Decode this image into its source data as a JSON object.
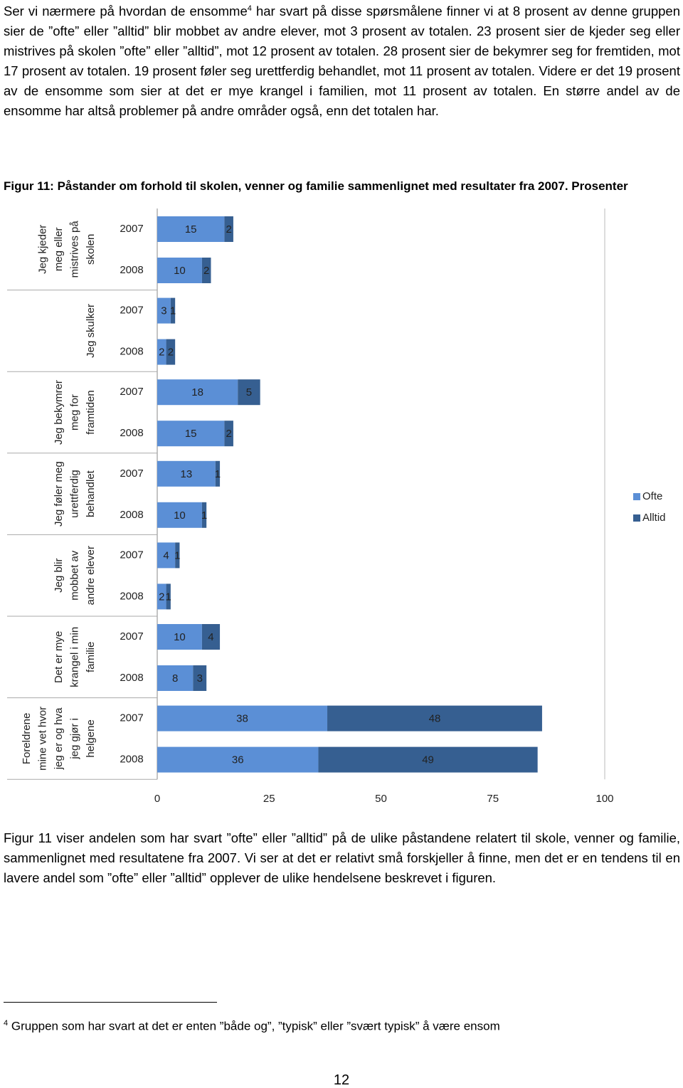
{
  "intro": {
    "text_before": "Ser vi nærmere på hvordan de ensomme",
    "footnote_mark": "4",
    "text_after": "har svart på disse spørsmålene finner vi at 8 prosent av denne gruppen sier de ”ofte” eller ”alltid” blir mobbet av andre elever, mot 3 prosent av totalen. 23 prosent sier de kjeder seg eller mistrives på skolen ”ofte” eller ”alltid”, mot 12 prosent av totalen. 28 prosent sier de bekymrer seg for fremtiden, mot 17 prosent av totalen. 19 prosent føler seg urettferdig behandlet, mot 11 prosent av totalen. Videre er det 19 prosent av de ensomme som sier at det er mye krangel i familien, mot 11 prosent av totalen. En større andel av de ensomme har altså problemer på andre områder også, enn det totalen har."
  },
  "figure_caption": "Figur 11: Påstander om forhold til skolen, venner og familie sammenlignet med resultater fra 2007. Prosenter",
  "chart_data": {
    "type": "stacked-bar-horizontal",
    "groups": [
      [
        "Jeg kjeder",
        "meg eller",
        "mistrives på",
        "skolen"
      ],
      [
        "Jeg skulker"
      ],
      [
        "Jeg bekymrer",
        "meg for",
        "framtiden"
      ],
      [
        "Jeg føler meg",
        "urettferdig",
        "behandlet"
      ],
      [
        "Jeg blir",
        "mobbet av",
        "andre elever"
      ],
      [
        "Det er mye",
        "krangel i min",
        "familie"
      ],
      [
        "Foreldrene",
        "mine vet hvor",
        "jeg er og hva",
        "jeg gjør i",
        "helgene"
      ]
    ],
    "categories": [
      "2007",
      "2008",
      "2007",
      "2008",
      "2007",
      "2008",
      "2007",
      "2008",
      "2007",
      "2008",
      "2007",
      "2008",
      "2007",
      "2008"
    ],
    "series": [
      {
        "name": "Ofte",
        "color": "#5b8fd6",
        "values": [
          15,
          10,
          3,
          2,
          18,
          15,
          13,
          10,
          4,
          2,
          10,
          8,
          38,
          36
        ]
      },
      {
        "name": "Alltid",
        "color": "#365f91",
        "values": [
          2,
          2,
          1,
          2,
          5,
          2,
          1,
          1,
          1,
          1,
          4,
          3,
          48,
          49
        ]
      }
    ],
    "xlim": [
      0,
      100
    ],
    "xticks": [
      0,
      25,
      50,
      75,
      100
    ],
    "legend": "right"
  },
  "body": "Figur 11 viser andelen som har svart ”ofte” eller ”alltid” på de ulike påstandene relatert til skole, venner og familie, sammenlignet med resultatene fra 2007. Vi ser at det er relativt små forskjeller å finne, men det er en tendens til en lavere andel som ”ofte” eller ”alltid” opplever de ulike hendelsene beskrevet i figuren.",
  "footnote": {
    "mark": "4",
    "text": "Gruppen som har svart at det er enten ”både og”, ”typisk” eller ”svært typisk” å være ensom"
  },
  "page_number": "12"
}
